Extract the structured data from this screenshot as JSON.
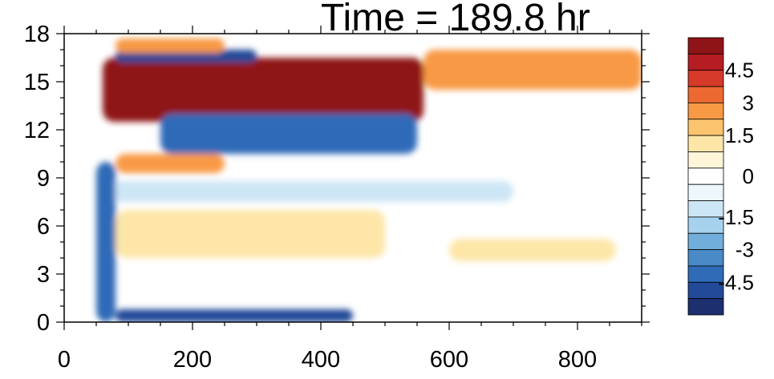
{
  "title": "Time = 189.8 hr",
  "chart_data": {
    "type": "heatmap",
    "title": "Time = 189.8 hr",
    "xlabel": "",
    "ylabel": "",
    "xlim": [
      0,
      900
    ],
    "ylim": [
      0,
      18
    ],
    "x_ticks": [
      0,
      200,
      400,
      600,
      800
    ],
    "y_ticks": [
      0,
      3,
      6,
      9,
      12,
      15,
      18
    ],
    "colorbar": {
      "levels": [
        -5.25,
        -4.5,
        -3.75,
        -3,
        -2.25,
        -1.5,
        -0.75,
        -0.25,
        0.25,
        0.75,
        1.5,
        2.25,
        3,
        3.75,
        4.5,
        5.25
      ],
      "tick_labels": [
        "4.5",
        "3",
        "1.5",
        "0",
        "-1.5",
        "-3",
        "-4.5"
      ],
      "tick_values": [
        4.5,
        3,
        1.5,
        0,
        -1.5,
        -3,
        -4.5
      ],
      "colors": [
        "#1d2f6f",
        "#234a98",
        "#2f6bb7",
        "#4a8ac6",
        "#72aedb",
        "#a6d2ee",
        "#cde6f5",
        "#eef7fc",
        "#ffffff",
        "#fff6da",
        "#fde6a8",
        "#fcc46e",
        "#f89a45",
        "#ec6a32",
        "#d63a2a",
        "#b51d22",
        "#8f1418"
      ]
    },
    "features": [
      {
        "name": "upper positive band",
        "x": [
          60,
          560
        ],
        "y": [
          12.5,
          16.5
        ],
        "value": 6.0
      },
      {
        "name": "upper positive band extension",
        "x": [
          560,
          900
        ],
        "y": [
          14.5,
          17.0
        ],
        "value": 2.5
      },
      {
        "name": "negative band",
        "x": [
          150,
          550
        ],
        "y": [
          10.5,
          13.0
        ],
        "value": -4.0
      },
      {
        "name": "top negative streak",
        "x": [
          80,
          300
        ],
        "y": [
          16.2,
          17.0
        ],
        "value": -4.5
      },
      {
        "name": "top positive streak",
        "x": [
          80,
          250
        ],
        "y": [
          16.8,
          17.7
        ],
        "value": 3.0
      },
      {
        "name": "positive patch near 10",
        "x": [
          80,
          250
        ],
        "y": [
          9.3,
          10.5
        ],
        "value": 2.5
      },
      {
        "name": "negative band near 8",
        "x": [
          50,
          700
        ],
        "y": [
          7.5,
          8.8
        ],
        "value": -1.2
      },
      {
        "name": "positive region near 6",
        "x": [
          80,
          500
        ],
        "y": [
          4.0,
          7.0
        ],
        "value": 1.5
      },
      {
        "name": "positive region near 5",
        "x": [
          600,
          860
        ],
        "y": [
          3.8,
          5.2
        ],
        "value": 0.8
      },
      {
        "name": "front line",
        "x": [
          50,
          80
        ],
        "y": [
          0,
          10
        ],
        "value": -4.0
      },
      {
        "name": "bottom negative band",
        "x": [
          80,
          450
        ],
        "y": [
          0,
          0.8
        ],
        "value": -5.0
      }
    ]
  }
}
